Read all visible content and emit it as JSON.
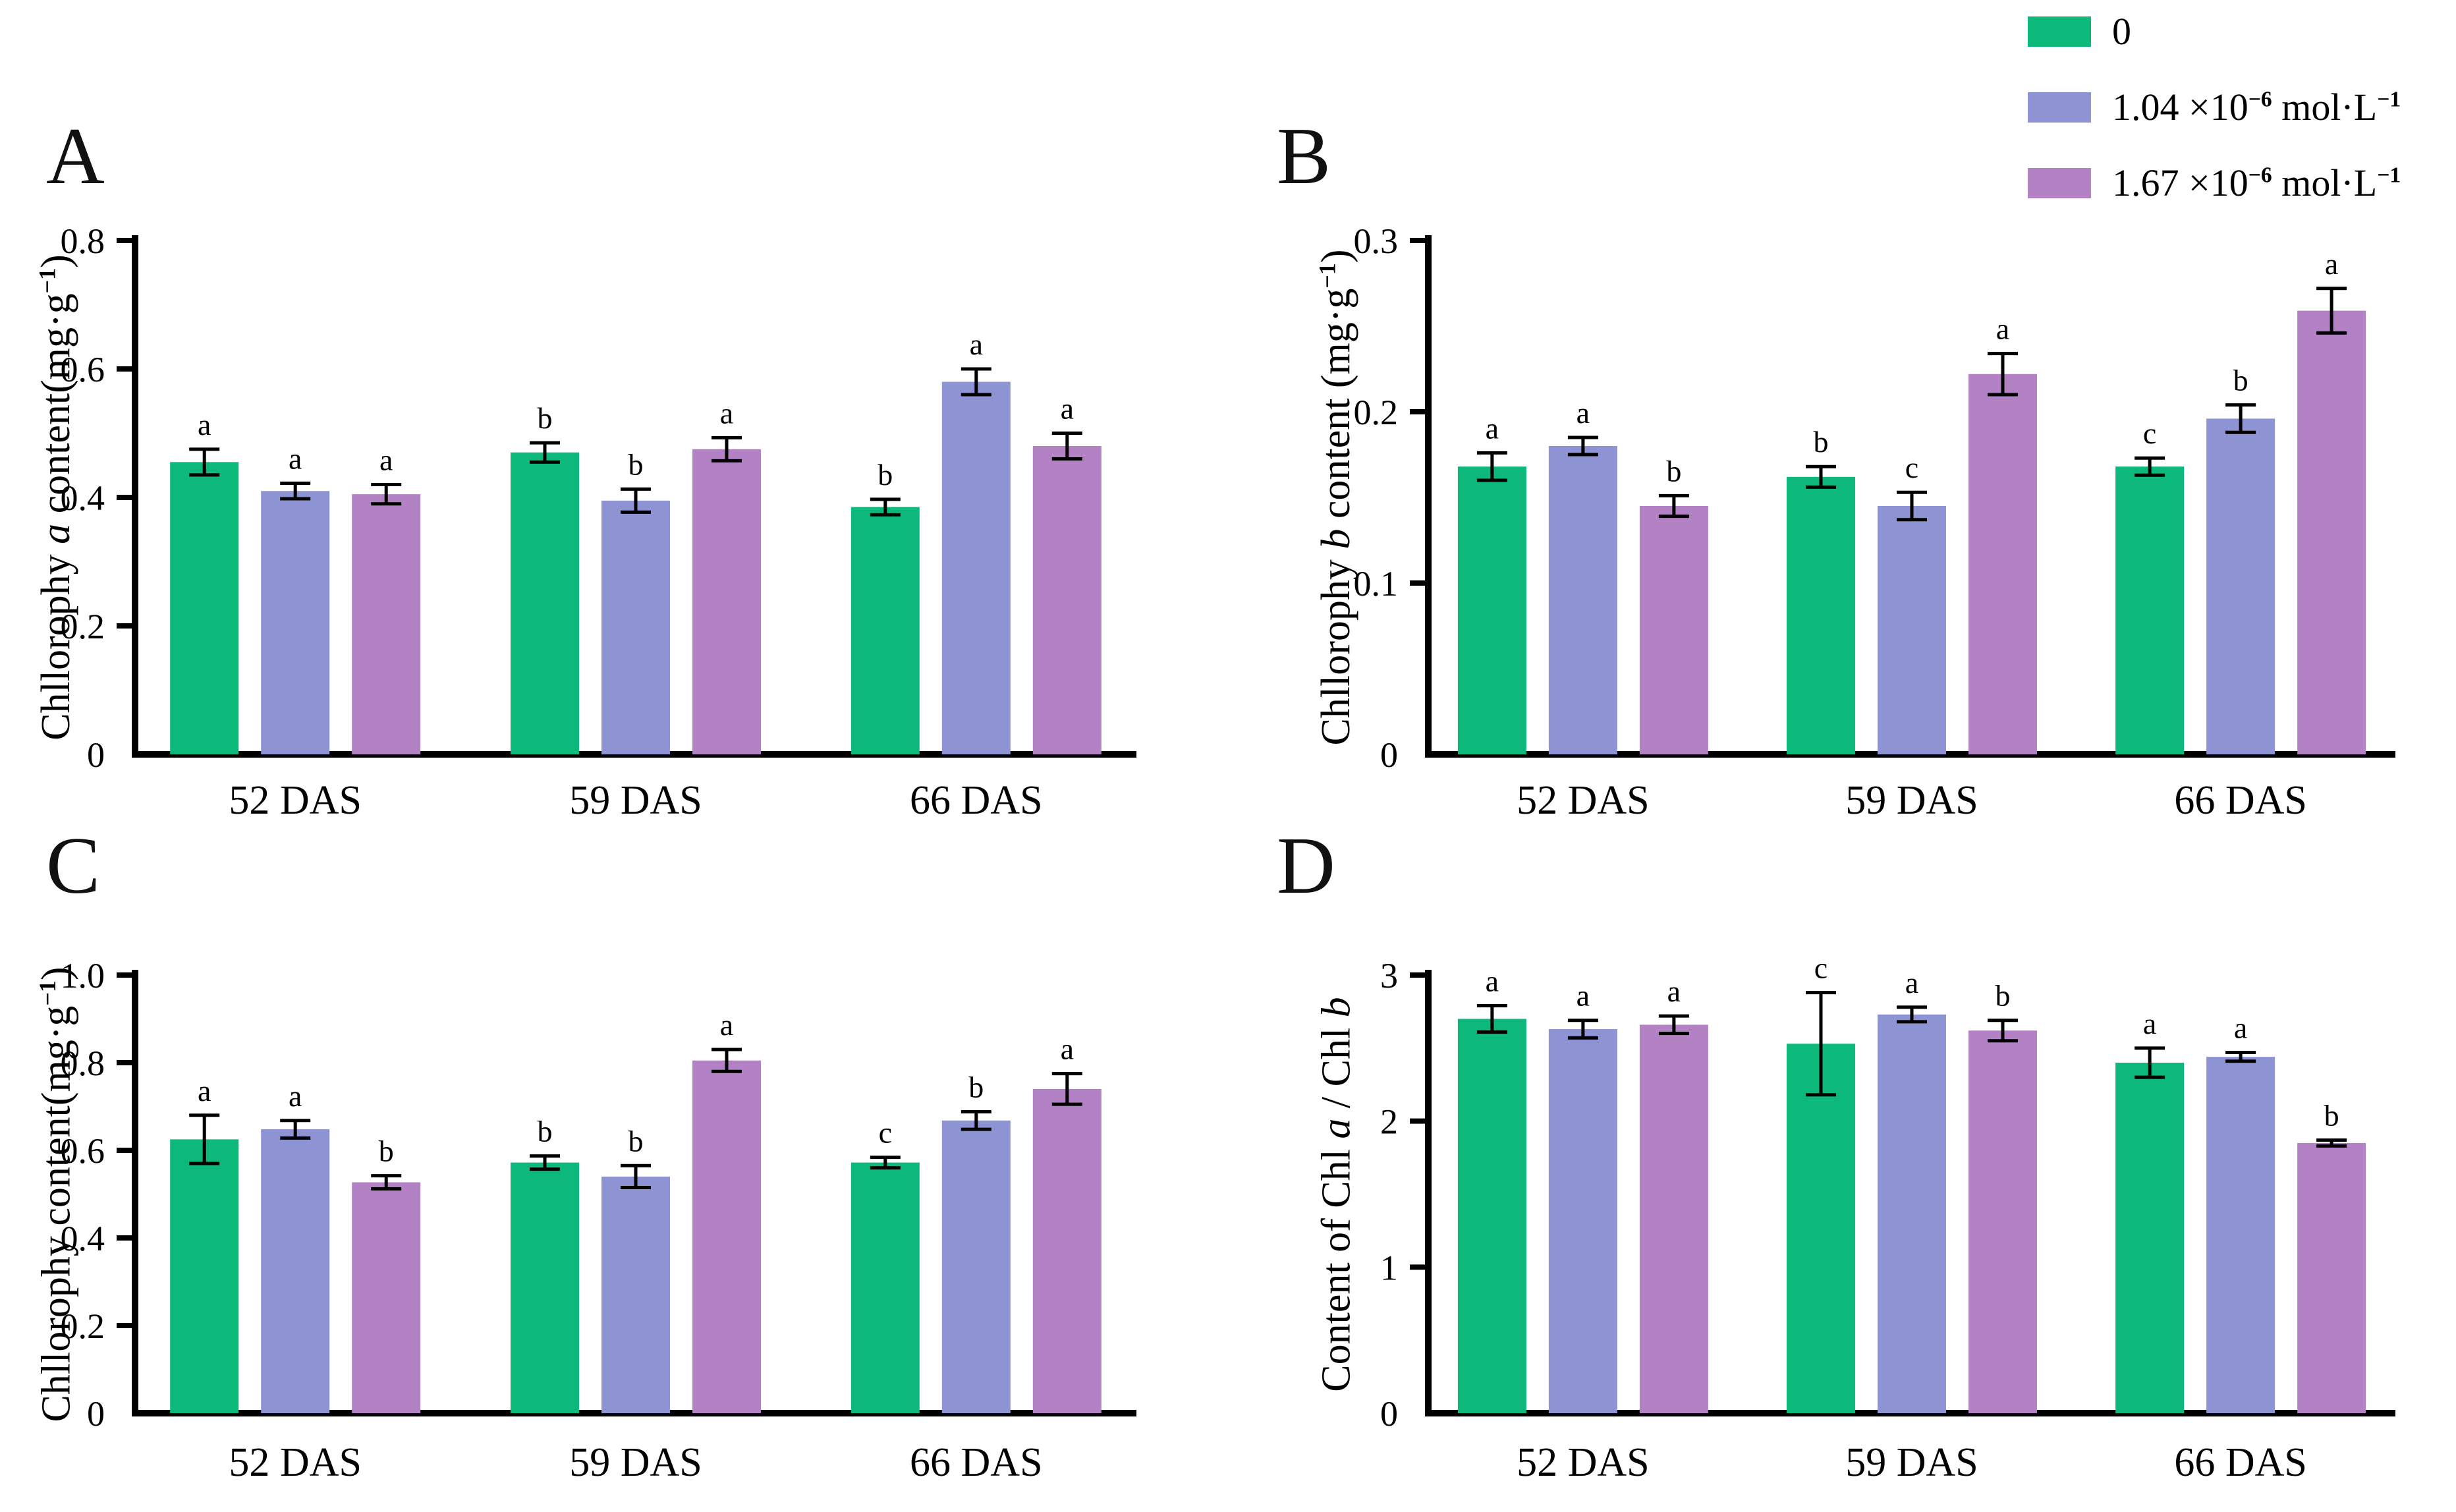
{
  "figure": {
    "background": "#ffffff"
  },
  "series_colors": [
    "#0db87b",
    "#8e93d4",
    "#b382c4"
  ],
  "legend": {
    "position": "top-right",
    "items": [
      {
        "color": "#0db87b",
        "label_parts": [
          {
            "t": "0"
          }
        ]
      },
      {
        "color": "#8e93d4",
        "label_parts": [
          {
            "t": "1.04 ×10"
          },
          {
            "t": "−6",
            "sup": true
          },
          {
            "t": " mol·L"
          },
          {
            "t": "−1",
            "sup": true
          }
        ]
      },
      {
        "color": "#b382c4",
        "label_parts": [
          {
            "t": "1.67 ×10"
          },
          {
            "t": "−6",
            "sup": true
          },
          {
            "t": " mol·L"
          },
          {
            "t": "−1",
            "sup": true
          }
        ]
      }
    ]
  },
  "chart_data": [
    {
      "type": "bar",
      "panel_letter": "A",
      "ylabel_parts": [
        {
          "t": "Chllorophy "
        },
        {
          "t": "a",
          "italic": true
        },
        {
          "t": " content(mg·g"
        },
        {
          "t": "−1",
          "sup": true
        },
        {
          "t": ")"
        }
      ],
      "xlabel": "",
      "ylim": [
        0,
        0.8
      ],
      "grid": false,
      "yticks": [
        {
          "v": 0,
          "label": "0"
        },
        {
          "v": 0.2,
          "label": "0.2"
        },
        {
          "v": 0.4,
          "label": "0.4"
        },
        {
          "v": 0.6,
          "label": "0.6"
        },
        {
          "v": 0.8,
          "label": "0.8"
        }
      ],
      "categories": [
        "52 DAS",
        "59 DAS",
        "66 DAS"
      ],
      "series": [
        {
          "name": "0",
          "values": [
            0.455,
            0.47,
            0.385
          ],
          "errors": [
            0.02,
            0.015,
            0.012
          ],
          "sig_letters": [
            "a",
            "b",
            "b"
          ]
        },
        {
          "name": "1.04 ×10−6 mol·L−1",
          "values": [
            0.41,
            0.395,
            0.58
          ],
          "errors": [
            0.012,
            0.018,
            0.02
          ],
          "sig_letters": [
            "a",
            "b",
            "a"
          ]
        },
        {
          "name": "1.67 ×10−6 mol·L−1",
          "values": [
            0.405,
            0.475,
            0.48
          ],
          "errors": [
            0.015,
            0.018,
            0.02
          ],
          "sig_letters": [
            "a",
            "a",
            "a"
          ]
        }
      ]
    },
    {
      "type": "bar",
      "panel_letter": "B",
      "ylabel_parts": [
        {
          "t": "Chllorophy "
        },
        {
          "t": "b",
          "italic": true
        },
        {
          "t": " content (mg·g"
        },
        {
          "t": "−1",
          "sup": true
        },
        {
          "t": ")"
        }
      ],
      "xlabel": "",
      "ylim": [
        0,
        0.3
      ],
      "grid": false,
      "yticks": [
        {
          "v": 0,
          "label": "0"
        },
        {
          "v": 0.1,
          "label": "0.1"
        },
        {
          "v": 0.2,
          "label": "0.2"
        },
        {
          "v": 0.3,
          "label": "0.3"
        }
      ],
      "categories": [
        "52 DAS",
        "59 DAS",
        "66 DAS"
      ],
      "series": [
        {
          "name": "0",
          "values": [
            0.168,
            0.162,
            0.168
          ],
          "errors": [
            0.008,
            0.006,
            0.005
          ],
          "sig_letters": [
            "a",
            "b",
            "c"
          ]
        },
        {
          "name": "1.04 ×10−6 mol·L−1",
          "values": [
            0.18,
            0.145,
            0.196
          ],
          "errors": [
            0.005,
            0.008,
            0.008
          ],
          "sig_letters": [
            "a",
            "c",
            "b"
          ]
        },
        {
          "name": "1.67 ×10−6 mol·L−1",
          "values": [
            0.145,
            0.222,
            0.259
          ],
          "errors": [
            0.006,
            0.012,
            0.013
          ],
          "sig_letters": [
            "b",
            "a",
            "a"
          ]
        }
      ]
    },
    {
      "type": "bar",
      "panel_letter": "C",
      "ylabel_parts": [
        {
          "t": "Chllorophy content(mg·g"
        },
        {
          "t": "−1",
          "sup": true
        },
        {
          "t": ")"
        }
      ],
      "xlabel": "",
      "ylim": [
        0,
        1.0
      ],
      "grid": false,
      "yticks": [
        {
          "v": 0,
          "label": "0"
        },
        {
          "v": 0.2,
          "label": "0.2"
        },
        {
          "v": 0.4,
          "label": "0.4"
        },
        {
          "v": 0.6,
          "label": "0.6"
        },
        {
          "v": 0.8,
          "label": "0.8"
        },
        {
          "v": 1.0,
          "label": "1.0"
        }
      ],
      "categories": [
        "52 DAS",
        "59 DAS",
        "66 DAS"
      ],
      "series": [
        {
          "name": "0",
          "values": [
            0.625,
            0.572,
            0.572
          ],
          "errors": [
            0.055,
            0.015,
            0.012
          ],
          "sig_letters": [
            "a",
            "b",
            "c"
          ]
        },
        {
          "name": "1.04 ×10−6 mol·L−1",
          "values": [
            0.648,
            0.54,
            0.668
          ],
          "errors": [
            0.02,
            0.025,
            0.02
          ],
          "sig_letters": [
            "a",
            "b",
            "b"
          ]
        },
        {
          "name": "1.67 ×10−6 mol·L−1",
          "values": [
            0.527,
            0.805,
            0.74
          ],
          "errors": [
            0.015,
            0.025,
            0.035
          ],
          "sig_letters": [
            "b",
            "a",
            "a"
          ]
        }
      ]
    },
    {
      "type": "bar",
      "panel_letter": "D",
      "ylabel_parts": [
        {
          "t": "Content of Chl "
        },
        {
          "t": "a",
          "italic": true
        },
        {
          "t": " / Chl "
        },
        {
          "t": "b",
          "italic": true
        }
      ],
      "xlabel": "",
      "ylim": [
        0,
        3
      ],
      "grid": false,
      "yticks": [
        {
          "v": 0,
          "label": "0"
        },
        {
          "v": 1,
          "label": "1"
        },
        {
          "v": 2,
          "label": "2"
        },
        {
          "v": 3,
          "label": "3"
        }
      ],
      "categories": [
        "52 DAS",
        "59 DAS",
        "66 DAS"
      ],
      "series": [
        {
          "name": "0",
          "values": [
            2.7,
            2.53,
            2.4
          ],
          "errors": [
            0.09,
            0.35,
            0.1
          ],
          "sig_letters": [
            "a",
            "c",
            "a"
          ]
        },
        {
          "name": "1.04 ×10−6 mol·L−1",
          "values": [
            2.63,
            2.73,
            2.44
          ],
          "errors": [
            0.06,
            0.05,
            0.03
          ],
          "sig_letters": [
            "a",
            "a",
            "a"
          ]
        },
        {
          "name": "1.67 ×10−6 mol·L−1",
          "values": [
            2.66,
            2.62,
            1.85
          ],
          "errors": [
            0.06,
            0.07,
            0.02
          ],
          "sig_letters": [
            "a",
            "b",
            "b"
          ]
        }
      ]
    }
  ]
}
